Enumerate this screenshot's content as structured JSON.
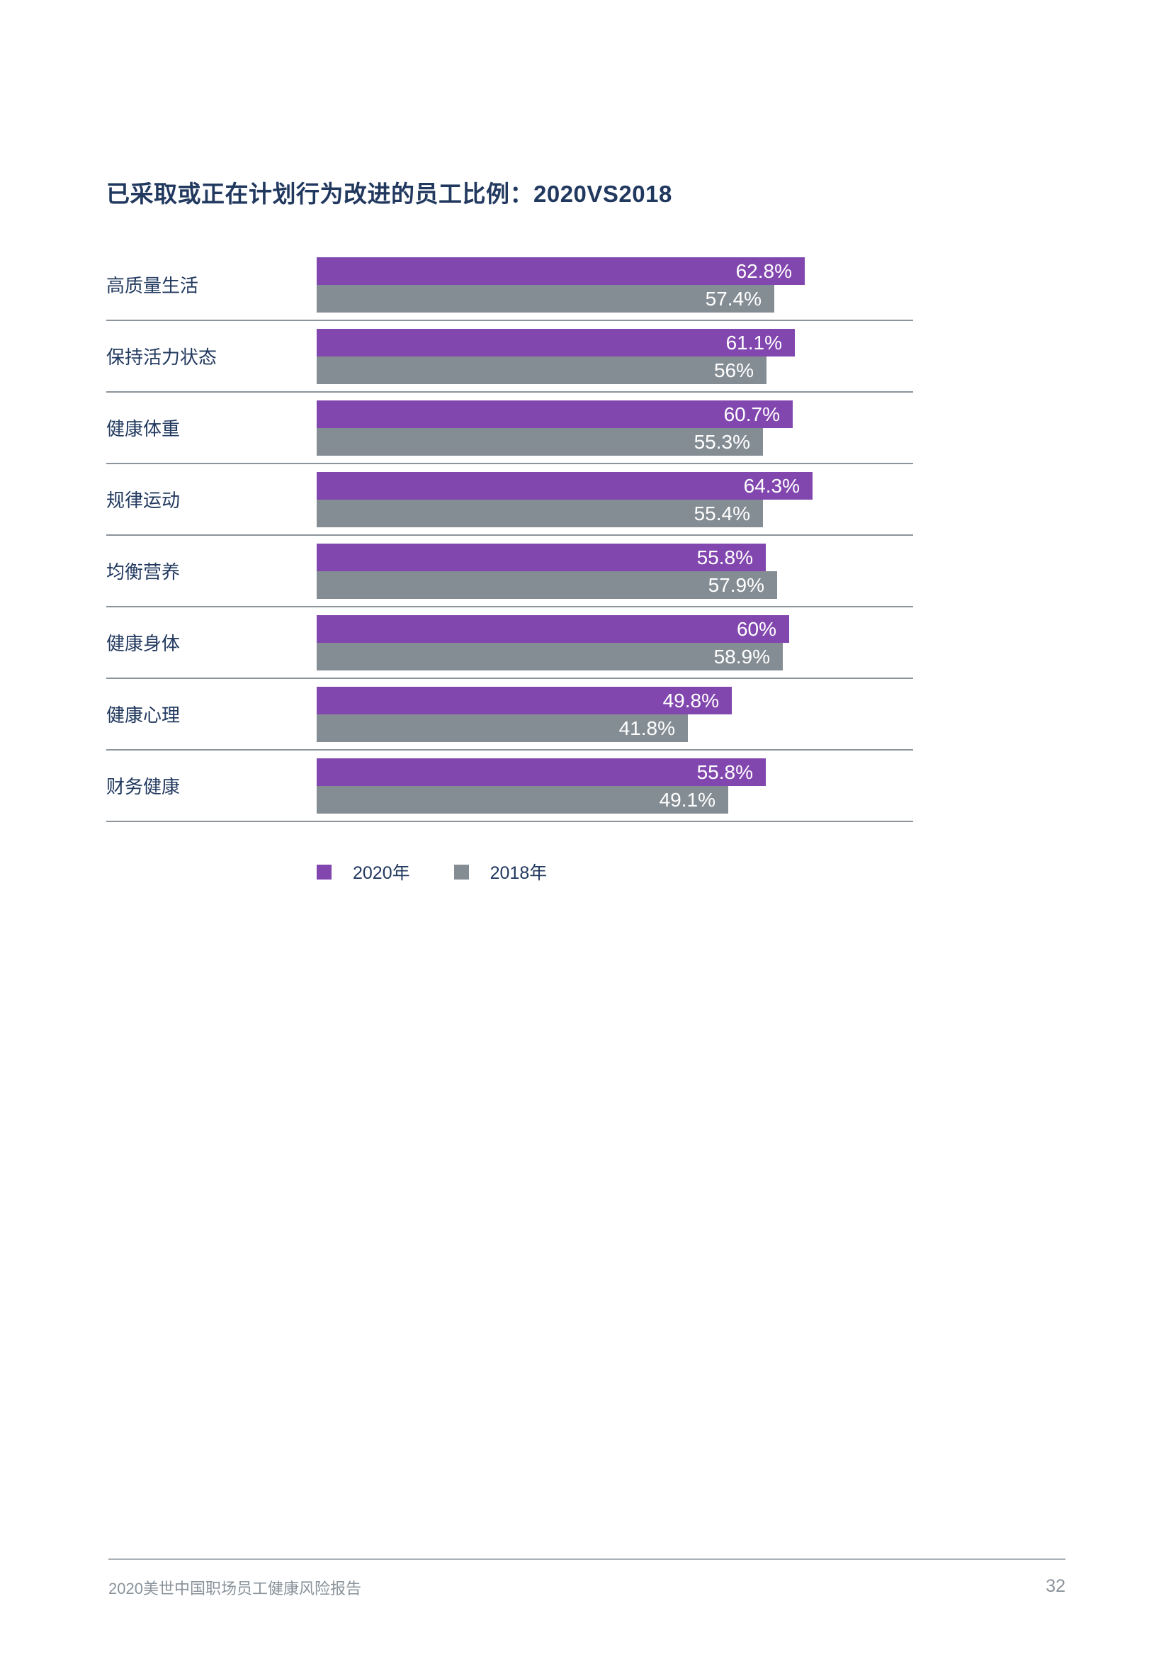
{
  "page": {
    "title": "已采取或正在计划行为改进的员工比例：2020VS2018"
  },
  "colors": {
    "purple_2020": "#8246AF",
    "gray_2018": "#858D94",
    "navy_text": "#22395F",
    "title_navy": "#1E3A66",
    "separator_gray": "#8D949B",
    "footer_gray": "#8A929A"
  },
  "legend": {
    "items": [
      {
        "label": "2020年",
        "color": "#8246AF"
      },
      {
        "label": "2018年",
        "color": "#858D94"
      }
    ],
    "position": "bottom"
  },
  "footer": {
    "report_title": "2020美世中国职场员工健康风险报告",
    "page_number": "32"
  },
  "chart_data": {
    "type": "bar",
    "orientation": "horizontal",
    "title": "已采取或正在计划行为改进的员工比例：2020VS2018",
    "categories": [
      "高质量生活",
      "保持活力状态",
      "健康体重",
      "规律运动",
      "均衡营养",
      "健康身体",
      "健康心理",
      "财务健康"
    ],
    "series": [
      {
        "name": "2020年",
        "color": "#8246AF",
        "values": [
          62.8,
          61.1,
          60.7,
          64.3,
          55.8,
          60,
          49.8,
          55.8
        ],
        "labels": [
          "62.8%",
          "61.1%",
          "60.7%",
          "64.3%",
          "55.8%",
          "60%",
          "49.8%",
          "55.8%"
        ]
      },
      {
        "name": "2018年",
        "color": "#858D94",
        "values": [
          57.4,
          56,
          55.3,
          55.4,
          57.9,
          58.9,
          41.8,
          49.1
        ],
        "labels": [
          "57.4%",
          "56%",
          "55.3%",
          "55.4%",
          "57.9%",
          "58.9%",
          "41.8%",
          "49.1%"
        ]
      }
    ],
    "xlim": [
      0,
      100
    ],
    "value_labels": "inside-end",
    "grid": "row-separators-only",
    "legend_position": "bottom"
  }
}
